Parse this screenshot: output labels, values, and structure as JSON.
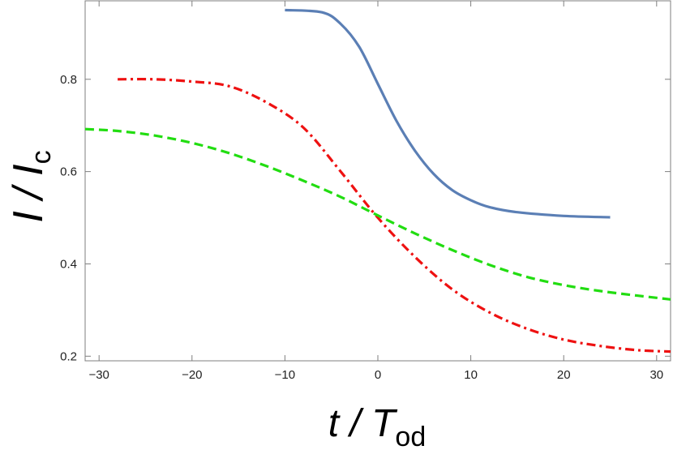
{
  "chart_data": {
    "type": "line",
    "title": "",
    "xlabel": {
      "main": "t / T",
      "sub": "od"
    },
    "ylabel": {
      "main": "I / I",
      "sub": "c"
    },
    "xlim": [
      -31.5,
      31.5
    ],
    "ylim": [
      0.19,
      0.97
    ],
    "xticks": [
      -30,
      -20,
      -10,
      0,
      10,
      20,
      30
    ],
    "xtick_labels": [
      "−30",
      "−20",
      "−10",
      "0",
      "10",
      "20",
      "30"
    ],
    "yticks": [
      0.2,
      0.4,
      0.6,
      0.8
    ],
    "ytick_labels": [
      "0.2",
      "0.4",
      "0.6",
      "0.8"
    ],
    "grid": false,
    "legend": "none",
    "series": [
      {
        "style": "solid",
        "color": "#5b7fb5",
        "x": [
          -10,
          -6,
          -4,
          -2,
          0,
          2,
          4,
          6,
          8,
          10,
          12,
          15,
          20,
          25
        ],
        "y": [
          0.95,
          0.945,
          0.92,
          0.87,
          0.79,
          0.71,
          0.645,
          0.595,
          0.56,
          0.538,
          0.523,
          0.512,
          0.504,
          0.501
        ]
      },
      {
        "style": "dashdot",
        "color": "#ee1111",
        "x": [
          -28,
          -24,
          -20,
          -16,
          -12,
          -8,
          -4,
          0,
          4,
          8,
          12,
          16,
          20,
          24,
          28,
          31.5
        ],
        "y": [
          0.8,
          0.8,
          0.795,
          0.785,
          0.75,
          0.695,
          0.6,
          0.5,
          0.415,
          0.345,
          0.295,
          0.26,
          0.236,
          0.222,
          0.213,
          0.21
        ]
      },
      {
        "style": "dashed",
        "color": "#22dd11",
        "x": [
          -31.5,
          -28,
          -24,
          -20,
          -16,
          -12,
          -8,
          -4,
          0,
          4,
          8,
          12,
          16,
          20,
          24,
          28,
          31.5
        ],
        "y": [
          0.692,
          0.688,
          0.678,
          0.662,
          0.64,
          0.612,
          0.58,
          0.545,
          0.505,
          0.466,
          0.43,
          0.398,
          0.372,
          0.354,
          0.341,
          0.331,
          0.323
        ]
      }
    ]
  }
}
